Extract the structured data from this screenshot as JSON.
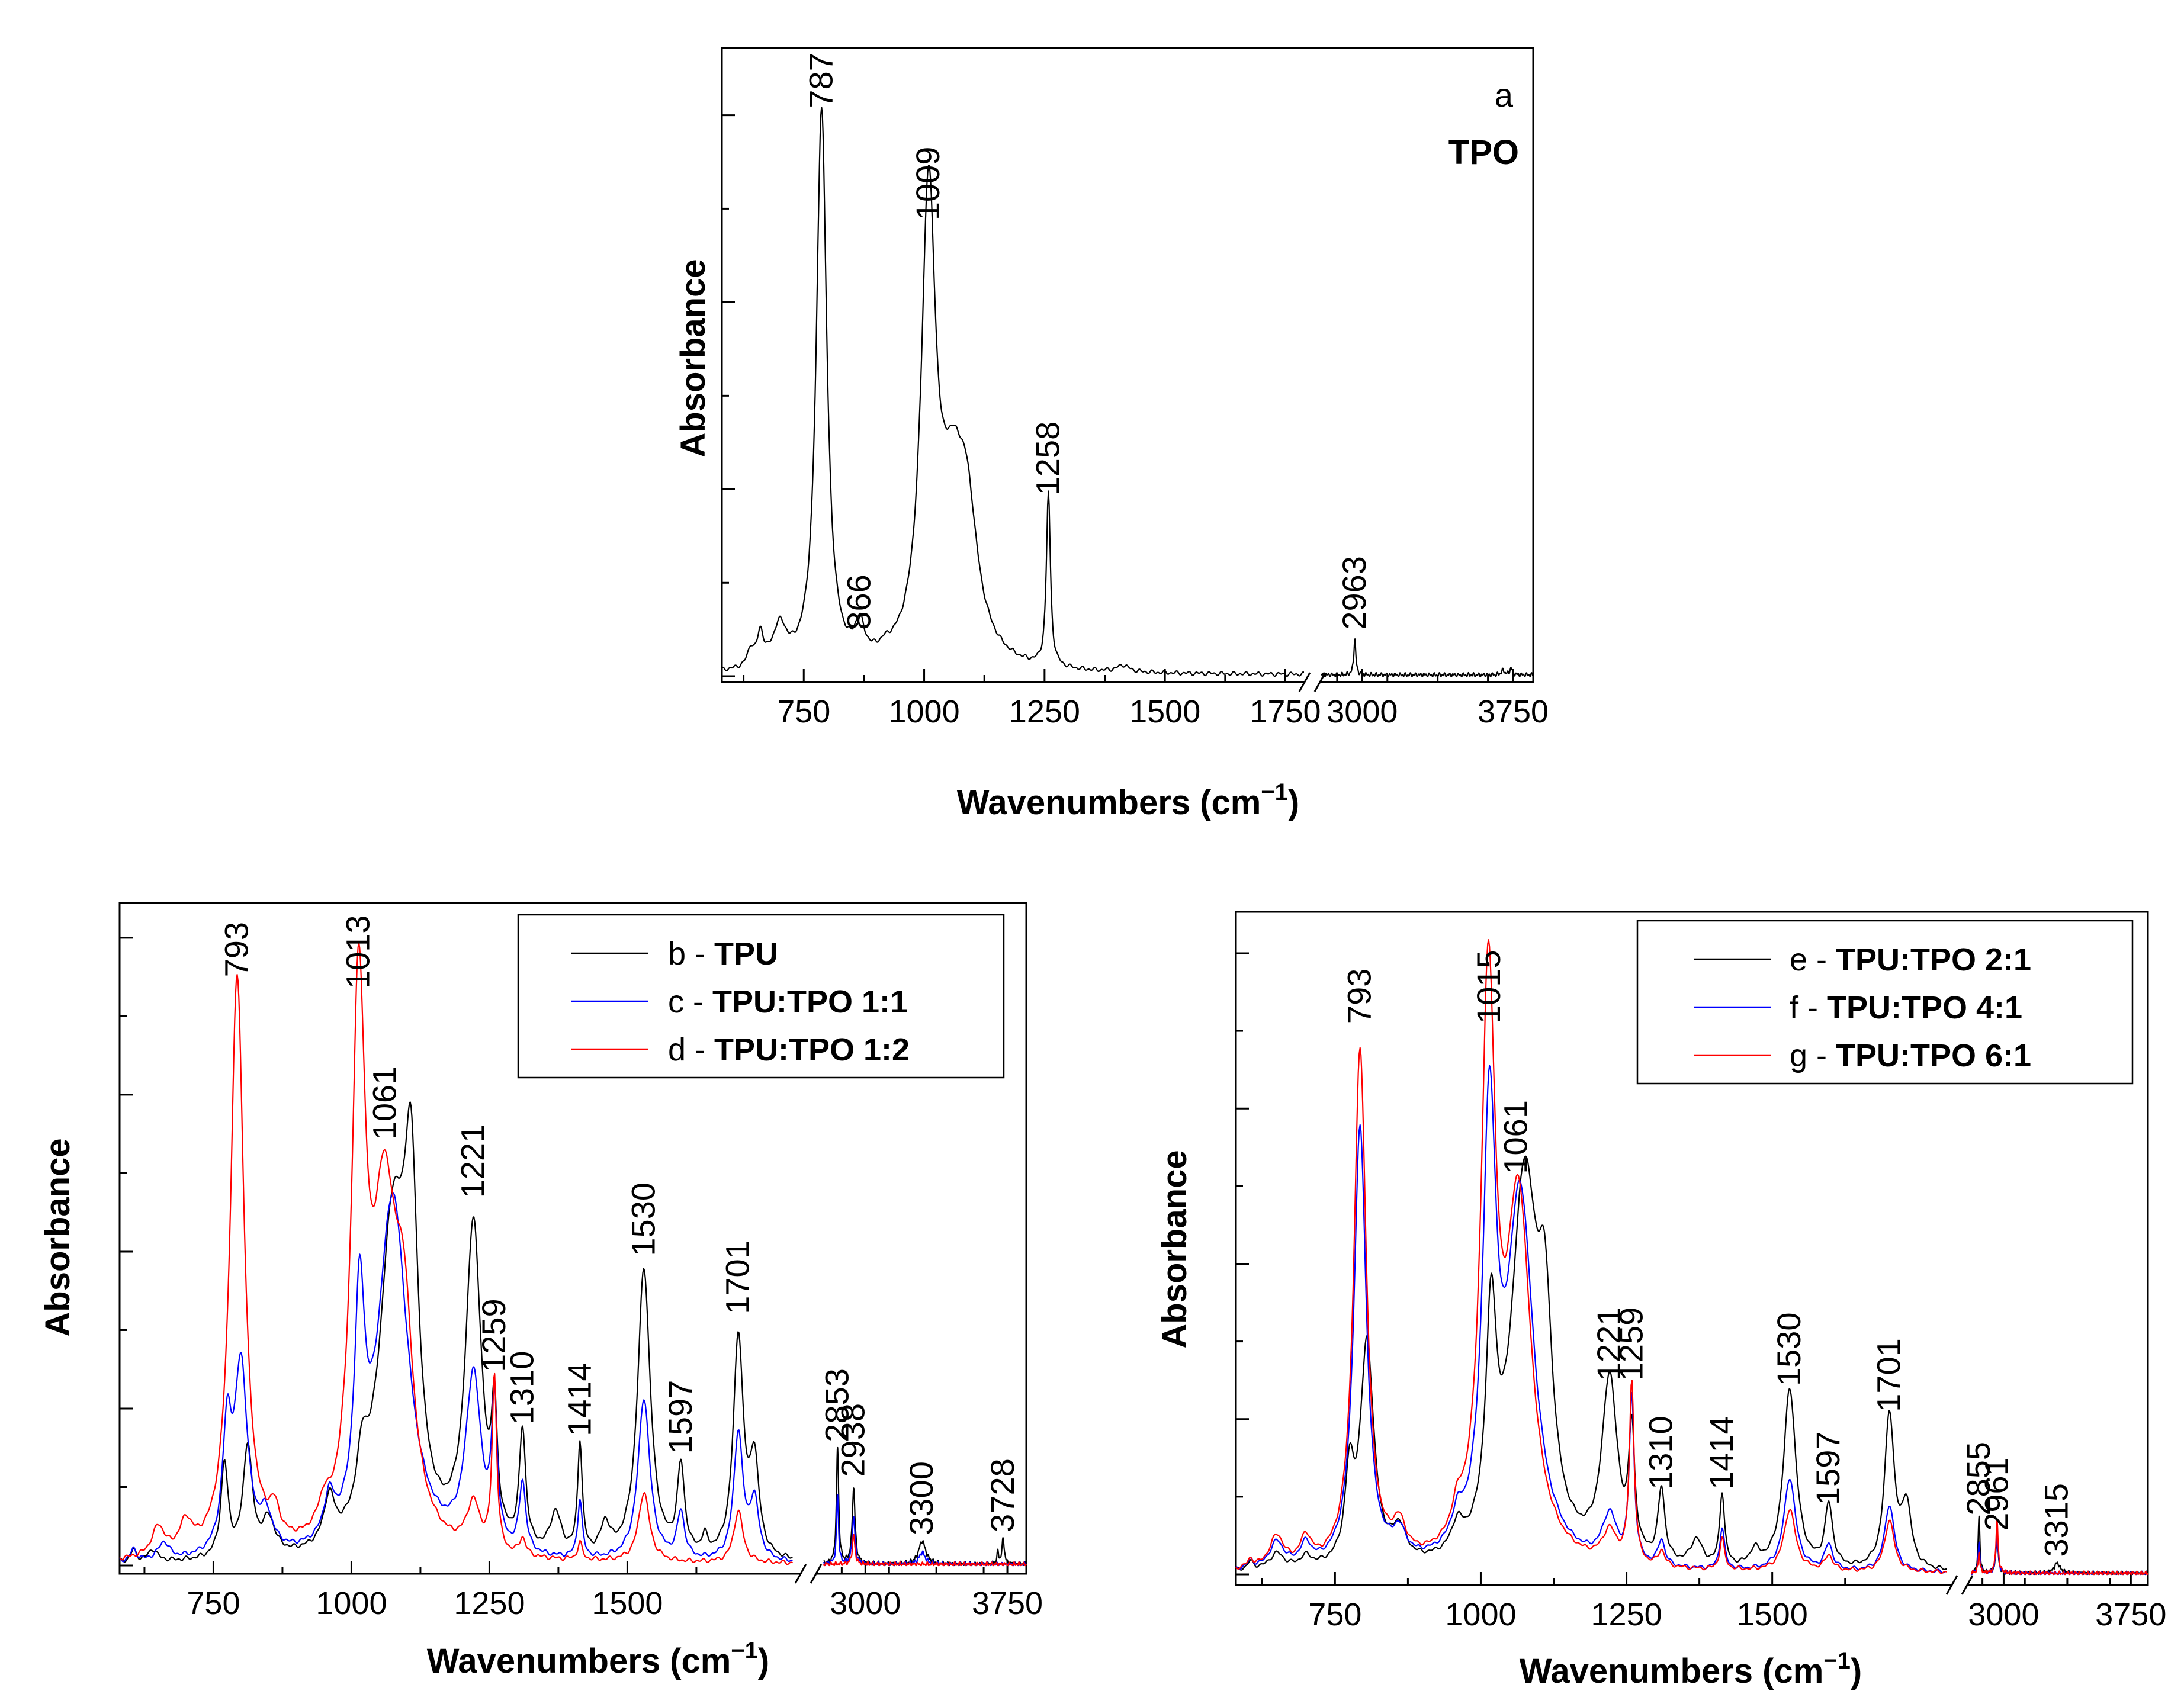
{
  "chart_data": [
    {
      "type": "line",
      "id": "panel-a",
      "panel_letter": "a",
      "panel_name": "TPO",
      "xlabel_main": "Wavenumbers (cm",
      "xlabel_sup": "−1",
      "xlabel_close": ")",
      "ylabel": "Absorbance",
      "x_segments": [
        [
          580,
          1790
        ],
        [
          2790,
          3850
        ]
      ],
      "x_ticks": [
        {
          "value": 750,
          "label": "750"
        },
        {
          "value": 1000,
          "label": "1000"
        },
        {
          "value": 1250,
          "label": "1250"
        },
        {
          "value": 1500,
          "label": "1500"
        },
        {
          "value": 1750,
          "label": "1750"
        },
        {
          "value": 3000,
          "label": "3000"
        },
        {
          "value": 3750,
          "label": "3750"
        }
      ],
      "ylim": [
        0,
        1.12
      ],
      "y_major_ticks": [
        0,
        0.333,
        0.667,
        1.0
      ],
      "peak_labels": [
        {
          "x": 787,
          "label": "787",
          "y": 1.0
        },
        {
          "x": 866,
          "label": "866",
          "y": 0.07
        },
        {
          "x": 1009,
          "label": "1009",
          "y": 0.8
        },
        {
          "x": 1258,
          "label": "1258",
          "y": 0.31
        },
        {
          "x": 2963,
          "label": "2963",
          "y": 0.07
        }
      ],
      "series": [
        {
          "name": "TPO",
          "color": "#000000",
          "baseline": 0.002,
          "peaks": [
            [
              640,
              0.03,
              8
            ],
            [
              660,
              0.055,
              8
            ],
            [
              700,
              0.07,
              18
            ],
            [
              787,
              1.0,
              13
            ],
            [
              866,
              0.058,
              12
            ],
            [
              920,
              0.01,
              15
            ],
            [
              1009,
              0.8,
              18
            ],
            [
              1060,
              0.28,
              35
            ],
            [
              1090,
              0.18,
              25
            ],
            [
              1258,
              0.31,
              5
            ],
            [
              1413,
              0.012,
              15
            ],
            [
              2963,
              0.065,
              6
            ],
            [
              3700,
              0.008,
              10
            ],
            [
              3740,
              0.012,
              8
            ]
          ]
        }
      ]
    },
    {
      "type": "line",
      "id": "panel-bcd",
      "xlabel_main": "Wavenumbers (cm",
      "xlabel_sup": "−1",
      "xlabel_close": ")",
      "ylabel": "Absorbance",
      "x_segments": [
        [
          580,
          1800
        ],
        [
          2780,
          3850
        ]
      ],
      "x_ticks": [
        {
          "value": 750,
          "label": "750"
        },
        {
          "value": 1000,
          "label": "1000"
        },
        {
          "value": 1250,
          "label": "1250"
        },
        {
          "value": 1500,
          "label": "1500"
        },
        {
          "value": 3000,
          "label": "3000"
        },
        {
          "value": 3750,
          "label": "3750"
        }
      ],
      "ylim": [
        0,
        1.14
      ],
      "y_major_ticks": [
        0,
        0.27,
        0.54,
        0.81,
        1.08
      ],
      "peak_labels": [
        {
          "x": 793,
          "label": "793",
          "y": 1.0
        },
        {
          "x": 1013,
          "label": "1013",
          "y": 0.98
        },
        {
          "x": 1061,
          "label": "1061",
          "y": 0.72
        },
        {
          "x": 1221,
          "label": "1221",
          "y": 0.62
        },
        {
          "x": 1259,
          "label": "1259",
          "y": 0.32
        },
        {
          "x": 1310,
          "label": "1310",
          "y": 0.23
        },
        {
          "x": 1414,
          "label": "1414",
          "y": 0.21
        },
        {
          "x": 1530,
          "label": "1530",
          "y": 0.52
        },
        {
          "x": 1597,
          "label": "1597",
          "y": 0.18
        },
        {
          "x": 1701,
          "label": "1701",
          "y": 0.42
        },
        {
          "x": 2853,
          "label": "2853",
          "y": 0.2
        },
        {
          "x": 2938,
          "label": "2938",
          "y": 0.14
        },
        {
          "x": 3300,
          "label": "3300",
          "y": 0.04
        },
        {
          "x": 3728,
          "label": "3728",
          "y": 0.045
        }
      ],
      "legend": [
        {
          "prefix": "b - ",
          "name": "TPU",
          "color": "#000000"
        },
        {
          "prefix": "c - ",
          "name": "TPU:TPO 1:1",
          "color": "#0000ff"
        },
        {
          "prefix": "d - ",
          "name": "TPU:TPO 1:2",
          "color": "#ff0000"
        }
      ],
      "series": [
        {
          "name": "TPU",
          "color": "#000000",
          "baseline": 0.002,
          "peaks": [
            [
              605,
              0.02,
              6
            ],
            [
              640,
              0.02,
              10
            ],
            [
              770,
              0.16,
              8
            ],
            [
              812,
              0.19,
              10
            ],
            [
              850,
              0.06,
              14
            ],
            [
              960,
              0.08,
              12
            ],
            [
              1020,
              0.1,
              12
            ],
            [
              1075,
              0.55,
              30
            ],
            [
              1108,
              0.52,
              15
            ],
            [
              1221,
              0.56,
              17
            ],
            [
              1259,
              0.2,
              6
            ],
            [
              1310,
              0.2,
              7
            ],
            [
              1370,
              0.07,
              12
            ],
            [
              1414,
              0.19,
              5
            ],
            [
              1460,
              0.05,
              10
            ],
            [
              1530,
              0.5,
              14
            ],
            [
              1597,
              0.15,
              8
            ],
            [
              1640,
              0.03,
              6
            ],
            [
              1701,
              0.38,
              11
            ],
            [
              1730,
              0.16,
              10
            ],
            [
              2853,
              0.2,
              7
            ],
            [
              2938,
              0.13,
              9
            ],
            [
              3300,
              0.04,
              22
            ],
            [
              3700,
              0.02,
              6
            ],
            [
              3728,
              0.045,
              7
            ]
          ]
        },
        {
          "name": "TPU:TPO 1:1",
          "color": "#0000ff",
          "baseline": 0.002,
          "peaks": [
            [
              605,
              0.02,
              6
            ],
            [
              660,
              0.03,
              12
            ],
            [
              775,
              0.2,
              10
            ],
            [
              800,
              0.32,
              14
            ],
            [
              845,
              0.06,
              15
            ],
            [
              960,
              0.07,
              12
            ],
            [
              1015,
              0.38,
              11
            ],
            [
              1075,
              0.62,
              33
            ],
            [
              1221,
              0.3,
              17
            ],
            [
              1259,
              0.24,
              6
            ],
            [
              1310,
              0.12,
              7
            ],
            [
              1414,
              0.1,
              5
            ],
            [
              1530,
              0.28,
              13
            ],
            [
              1597,
              0.08,
              8
            ],
            [
              1701,
              0.22,
              10
            ],
            [
              1730,
              0.1,
              10
            ],
            [
              2853,
              0.12,
              6
            ],
            [
              2938,
              0.08,
              9
            ],
            [
              3300,
              0.02,
              20
            ]
          ]
        },
        {
          "name": "TPU:TPO 1:2",
          "color": "#ff0000",
          "baseline": 0.002,
          "peaks": [
            [
              650,
              0.05,
              14
            ],
            [
              700,
              0.05,
              14
            ],
            [
              793,
              1.0,
              15
            ],
            [
              860,
              0.05,
              12
            ],
            [
              950,
              0.04,
              12
            ],
            [
              1013,
              0.9,
              15
            ],
            [
              1060,
              0.55,
              28
            ],
            [
              1095,
              0.3,
              20
            ],
            [
              1221,
              0.08,
              15
            ],
            [
              1259,
              0.3,
              5
            ],
            [
              1310,
              0.03,
              7
            ],
            [
              1414,
              0.03,
              5
            ],
            [
              1530,
              0.12,
              12
            ],
            [
              1701,
              0.09,
              10
            ],
            [
              2938,
              0.05,
              8
            ]
          ]
        }
      ]
    },
    {
      "type": "line",
      "id": "panel-efg",
      "xlabel_main": "Wavenumbers (cm",
      "xlabel_sup": "−1",
      "xlabel_close": ")",
      "ylabel": "Absorbance",
      "x_segments": [
        [
          580,
          1800
        ],
        [
          2810,
          3850
        ]
      ],
      "x_ticks": [
        {
          "value": 750,
          "label": "750"
        },
        {
          "value": 1000,
          "label": "1000"
        },
        {
          "value": 1250,
          "label": "1250"
        },
        {
          "value": 1500,
          "label": "1500"
        },
        {
          "value": 3000,
          "label": "3000"
        },
        {
          "value": 3750,
          "label": "3750"
        }
      ],
      "ylim": [
        0,
        1.28
      ],
      "y_major_ticks": [
        0,
        0.3,
        0.6,
        0.9,
        1.2
      ],
      "peak_labels": [
        {
          "x": 793,
          "label": "793",
          "y": 1.05
        },
        {
          "x": 1015,
          "label": "1015",
          "y": 1.05
        },
        {
          "x": 1061,
          "label": "1061",
          "y": 0.76
        },
        {
          "x": 1221,
          "label": "1221",
          "y": 0.36
        },
        {
          "x": 1259,
          "label": "1259",
          "y": 0.36
        },
        {
          "x": 1310,
          "label": "1310",
          "y": 0.15
        },
        {
          "x": 1414,
          "label": "1414",
          "y": 0.15
        },
        {
          "x": 1530,
          "label": "1530",
          "y": 0.35
        },
        {
          "x": 1597,
          "label": "1597",
          "y": 0.12
        },
        {
          "x": 1701,
          "label": "1701",
          "y": 0.3
        },
        {
          "x": 2855,
          "label": "2855",
          "y": 0.1
        },
        {
          "x": 2961,
          "label": "2961",
          "y": 0.07
        },
        {
          "x": 3315,
          "label": "3315",
          "y": 0.02
        }
      ],
      "legend": [
        {
          "prefix": "e - ",
          "name": "TPU:TPO 2:1",
          "color": "#000000"
        },
        {
          "prefix": "f -  ",
          "name": "TPU:TPO 4:1",
          "color": "#0000ff"
        },
        {
          "prefix": "g - ",
          "name": "TPU:TPO 6:1",
          "color": "#ff0000"
        }
      ],
      "series": [
        {
          "name": "TPU:TPO 2:1",
          "color": "#000000",
          "baseline": 0.002,
          "peaks": [
            [
              605,
              0.015,
              6
            ],
            [
              650,
              0.03,
              15
            ],
            [
              700,
              0.02,
              12
            ],
            [
              775,
              0.16,
              9
            ],
            [
              805,
              0.43,
              14
            ],
            [
              860,
              0.06,
              14
            ],
            [
              960,
              0.05,
              12
            ],
            [
              1018,
              0.42,
              11
            ],
            [
              1075,
              0.73,
              28
            ],
            [
              1110,
              0.35,
              15
            ],
            [
              1221,
              0.35,
              16
            ],
            [
              1259,
              0.23,
              6
            ],
            [
              1310,
              0.14,
              7
            ],
            [
              1370,
              0.05,
              12
            ],
            [
              1414,
              0.14,
              5
            ],
            [
              1470,
              0.03,
              10
            ],
            [
              1530,
              0.35,
              13
            ],
            [
              1597,
              0.12,
              8
            ],
            [
              1701,
              0.3,
              10
            ],
            [
              1730,
              0.12,
              10
            ],
            [
              2855,
              0.11,
              6
            ],
            [
              2961,
              0.07,
              8
            ],
            [
              3315,
              0.02,
              20
            ]
          ]
        },
        {
          "name": "TPU:TPO 4:1",
          "color": "#0000ff",
          "baseline": 0.002,
          "peaks": [
            [
              605,
              0.015,
              6
            ],
            [
              650,
              0.05,
              15
            ],
            [
              700,
              0.04,
              12
            ],
            [
              793,
              0.85,
              13
            ],
            [
              860,
              0.05,
              14
            ],
            [
              960,
              0.05,
              12
            ],
            [
              1015,
              0.82,
              14
            ],
            [
              1068,
              0.7,
              28
            ],
            [
              1221,
              0.09,
              15
            ],
            [
              1259,
              0.32,
              5
            ],
            [
              1310,
              0.05,
              7
            ],
            [
              1414,
              0.08,
              5
            ],
            [
              1530,
              0.18,
              12
            ],
            [
              1597,
              0.05,
              8
            ],
            [
              1701,
              0.13,
              10
            ],
            [
              2855,
              0.06,
              6
            ],
            [
              2961,
              0.08,
              8
            ]
          ]
        },
        {
          "name": "TPU:TPO 6:1",
          "color": "#ff0000",
          "baseline": 0.002,
          "peaks": [
            [
              605,
              0.015,
              6
            ],
            [
              650,
              0.06,
              15
            ],
            [
              700,
              0.05,
              12
            ],
            [
              793,
              1.0,
              13
            ],
            [
              860,
              0.06,
              14
            ],
            [
              960,
              0.05,
              12
            ],
            [
              1013,
              1.08,
              15
            ],
            [
              1065,
              0.68,
              26
            ],
            [
              1221,
              0.06,
              15
            ],
            [
              1259,
              0.35,
              5
            ],
            [
              1310,
              0.03,
              7
            ],
            [
              1414,
              0.06,
              5
            ],
            [
              1530,
              0.12,
              12
            ],
            [
              1597,
              0.03,
              8
            ],
            [
              1701,
              0.1,
              10
            ],
            [
              2855,
              0.04,
              6
            ],
            [
              2961,
              0.1,
              8
            ]
          ]
        }
      ]
    }
  ]
}
